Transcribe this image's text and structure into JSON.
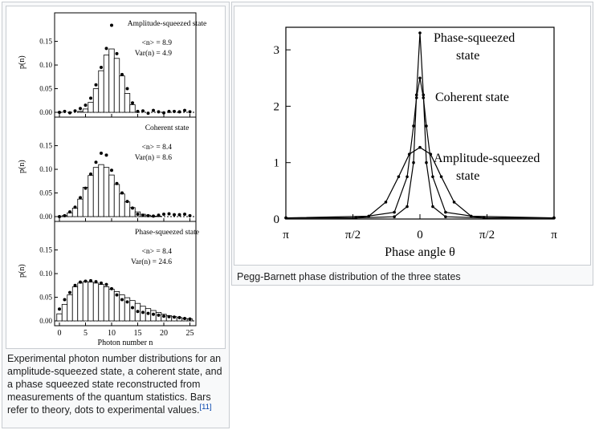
{
  "left_figure": {
    "caption": "Experimental photon number distributions for an amplitude-squeezed state, a coherent state, and a phase squeezed state reconstructed from measurements of the quantum statistics. Bars refer to theory, dots to experimental values.",
    "ref": "[11]"
  },
  "right_figure": {
    "caption": "Pegg-Barnett phase distribution of the three states"
  },
  "chart_data": [
    {
      "type": "bar",
      "title": "Amplitude-squeezed state",
      "ylabel": "p(n)",
      "xlabel": "",
      "ylim": [
        0,
        0.19
      ],
      "yticks": [
        "0.00",
        "0.05",
        "0.10",
        "0.15"
      ],
      "annotations": [
        "<n> = 8.9",
        "Var(n) = 4.9"
      ],
      "series": [
        {
          "name": "theory",
          "kind": "bars",
          "x": [
            4,
            5,
            6,
            7,
            8,
            9,
            10,
            11,
            12,
            13,
            14
          ],
          "values": [
            0.002,
            0.007,
            0.021,
            0.05,
            0.088,
            0.121,
            0.134,
            0.114,
            0.077,
            0.04,
            0.016
          ]
        },
        {
          "name": "experiment",
          "kind": "dots",
          "x": [
            0,
            1,
            2,
            3,
            4,
            5,
            6,
            7,
            8,
            9,
            10,
            11,
            12,
            13,
            14,
            15,
            16,
            17,
            18,
            19,
            20,
            21,
            22,
            23,
            24,
            25
          ],
          "values": [
            0,
            0.002,
            -0.001,
            0.003,
            0.008,
            0.015,
            0.03,
            0.058,
            0.095,
            0.135,
            0.184,
            0.124,
            0.08,
            0.05,
            0.02,
            0.002,
            0.003,
            -0.002,
            0.004,
            0.001,
            -0.001,
            0.002,
            0.002,
            0.001,
            0.004,
            0.001
          ]
        }
      ]
    },
    {
      "type": "bar",
      "title": "Coherent state",
      "ylabel": "p(n)",
      "xlabel": "",
      "ylim": [
        0,
        0.19
      ],
      "yticks": [
        "0.00",
        "0.05",
        "0.10",
        "0.15"
      ],
      "annotations": [
        "<n> = 8.4",
        "Var(n) = 8.6"
      ],
      "series": [
        {
          "name": "theory",
          "kind": "bars",
          "x": [
            1,
            2,
            3,
            4,
            5,
            6,
            7,
            8,
            9,
            10,
            11,
            12,
            13,
            14,
            15,
            16,
            17,
            18,
            19,
            20
          ],
          "values": [
            0.002,
            0.008,
            0.018,
            0.037,
            0.062,
            0.087,
            0.104,
            0.11,
            0.104,
            0.088,
            0.068,
            0.048,
            0.031,
            0.019,
            0.01,
            0.005,
            0.003,
            0.001,
            0.001,
            0.0
          ]
        },
        {
          "name": "experiment",
          "kind": "dots",
          "x": [
            0,
            1,
            2,
            3,
            4,
            5,
            6,
            7,
            8,
            9,
            10,
            11,
            12,
            13,
            14,
            15,
            16,
            17,
            18,
            19,
            20,
            21,
            22,
            23,
            24,
            25
          ],
          "values": [
            0,
            0.002,
            0.01,
            0.02,
            0.04,
            0.06,
            0.09,
            0.115,
            0.134,
            0.13,
            0.098,
            0.07,
            0.05,
            0.032,
            0.018,
            0.005,
            0.003,
            0.002,
            0.001,
            0.003,
            0.005,
            0.006,
            0.004,
            0.004,
            0.005,
            0.002
          ]
        }
      ]
    },
    {
      "type": "bar",
      "title": "Phase-squeezed state",
      "ylabel": "p(n)",
      "xlabel": "Photon number n",
      "ylim": [
        0,
        0.19
      ],
      "yticks": [
        "0.00",
        "0.05",
        "0.10",
        "0.15"
      ],
      "xticks": [
        "0",
        "5",
        "10",
        "15",
        "20",
        "25"
      ],
      "annotations": [
        "<n> = 8.4",
        "Var(n) = 24.6"
      ],
      "series": [
        {
          "name": "theory",
          "kind": "bars",
          "x": [
            0,
            1,
            2,
            3,
            4,
            5,
            6,
            7,
            8,
            9,
            10,
            11,
            12,
            13,
            14,
            15,
            16,
            17,
            18,
            19,
            20,
            21,
            22,
            23,
            24,
            25
          ],
          "values": [
            0.015,
            0.035,
            0.055,
            0.072,
            0.08,
            0.083,
            0.082,
            0.08,
            0.077,
            0.072,
            0.067,
            0.062,
            0.055,
            0.049,
            0.043,
            0.037,
            0.031,
            0.026,
            0.022,
            0.018,
            0.014,
            0.011,
            0.009,
            0.007,
            0.005,
            0.004
          ]
        },
        {
          "name": "experiment",
          "kind": "dots",
          "x": [
            0,
            1,
            2,
            3,
            4,
            5,
            6,
            7,
            8,
            9,
            10,
            11,
            12,
            13,
            14,
            15,
            16,
            17,
            18,
            19,
            20,
            21,
            22,
            23,
            24,
            25
          ],
          "values": [
            0.025,
            0.045,
            0.06,
            0.075,
            0.082,
            0.084,
            0.085,
            0.083,
            0.08,
            0.077,
            0.068,
            0.055,
            0.045,
            0.04,
            0.028,
            0.02,
            0.018,
            0.016,
            0.014,
            0.012,
            0.01,
            0.009,
            0.008,
            0.007,
            0.005,
            0.004
          ]
        }
      ]
    },
    {
      "type": "line",
      "title": "",
      "xlabel": "Phase angle θ",
      "ylabel": "",
      "xlim": [
        -3.1416,
        3.1416
      ],
      "ylim": [
        0,
        3.4
      ],
      "xticks": [
        "π",
        "π/2",
        "0",
        "π/2",
        "π"
      ],
      "yticks": [
        "0",
        "1",
        "2",
        "3"
      ],
      "series": [
        {
          "name": "Phase-squeezed state",
          "kind": "narrow-peak",
          "x": [
            -3.14,
            -1.5,
            -0.6,
            -0.3,
            -0.15,
            -0.08,
            0,
            0.08,
            0.15,
            0.3,
            0.6,
            1.5,
            3.14
          ],
          "values": [
            0.02,
            0.02,
            0.04,
            0.22,
            1.0,
            2.2,
            3.3,
            2.2,
            1.0,
            0.22,
            0.04,
            0.02,
            0.02
          ]
        },
        {
          "name": "Coherent state",
          "kind": "medium-peak",
          "x": [
            -3.14,
            -1.5,
            -0.6,
            -0.3,
            -0.15,
            -0.08,
            0,
            0.08,
            0.15,
            0.3,
            0.6,
            1.5,
            3.14
          ],
          "values": [
            0.02,
            0.02,
            0.12,
            0.75,
            1.65,
            2.15,
            2.5,
            2.15,
            1.65,
            0.75,
            0.12,
            0.02,
            0.02
          ]
        },
        {
          "name": "Amplitude-squeezed state",
          "kind": "broad-peak",
          "x": [
            -3.14,
            -1.2,
            -0.8,
            -0.5,
            -0.25,
            0,
            0.25,
            0.5,
            0.8,
            1.2,
            3.14
          ],
          "values": [
            0.02,
            0.05,
            0.3,
            0.75,
            1.15,
            1.27,
            1.15,
            0.75,
            0.3,
            0.05,
            0.02
          ]
        }
      ]
    }
  ]
}
